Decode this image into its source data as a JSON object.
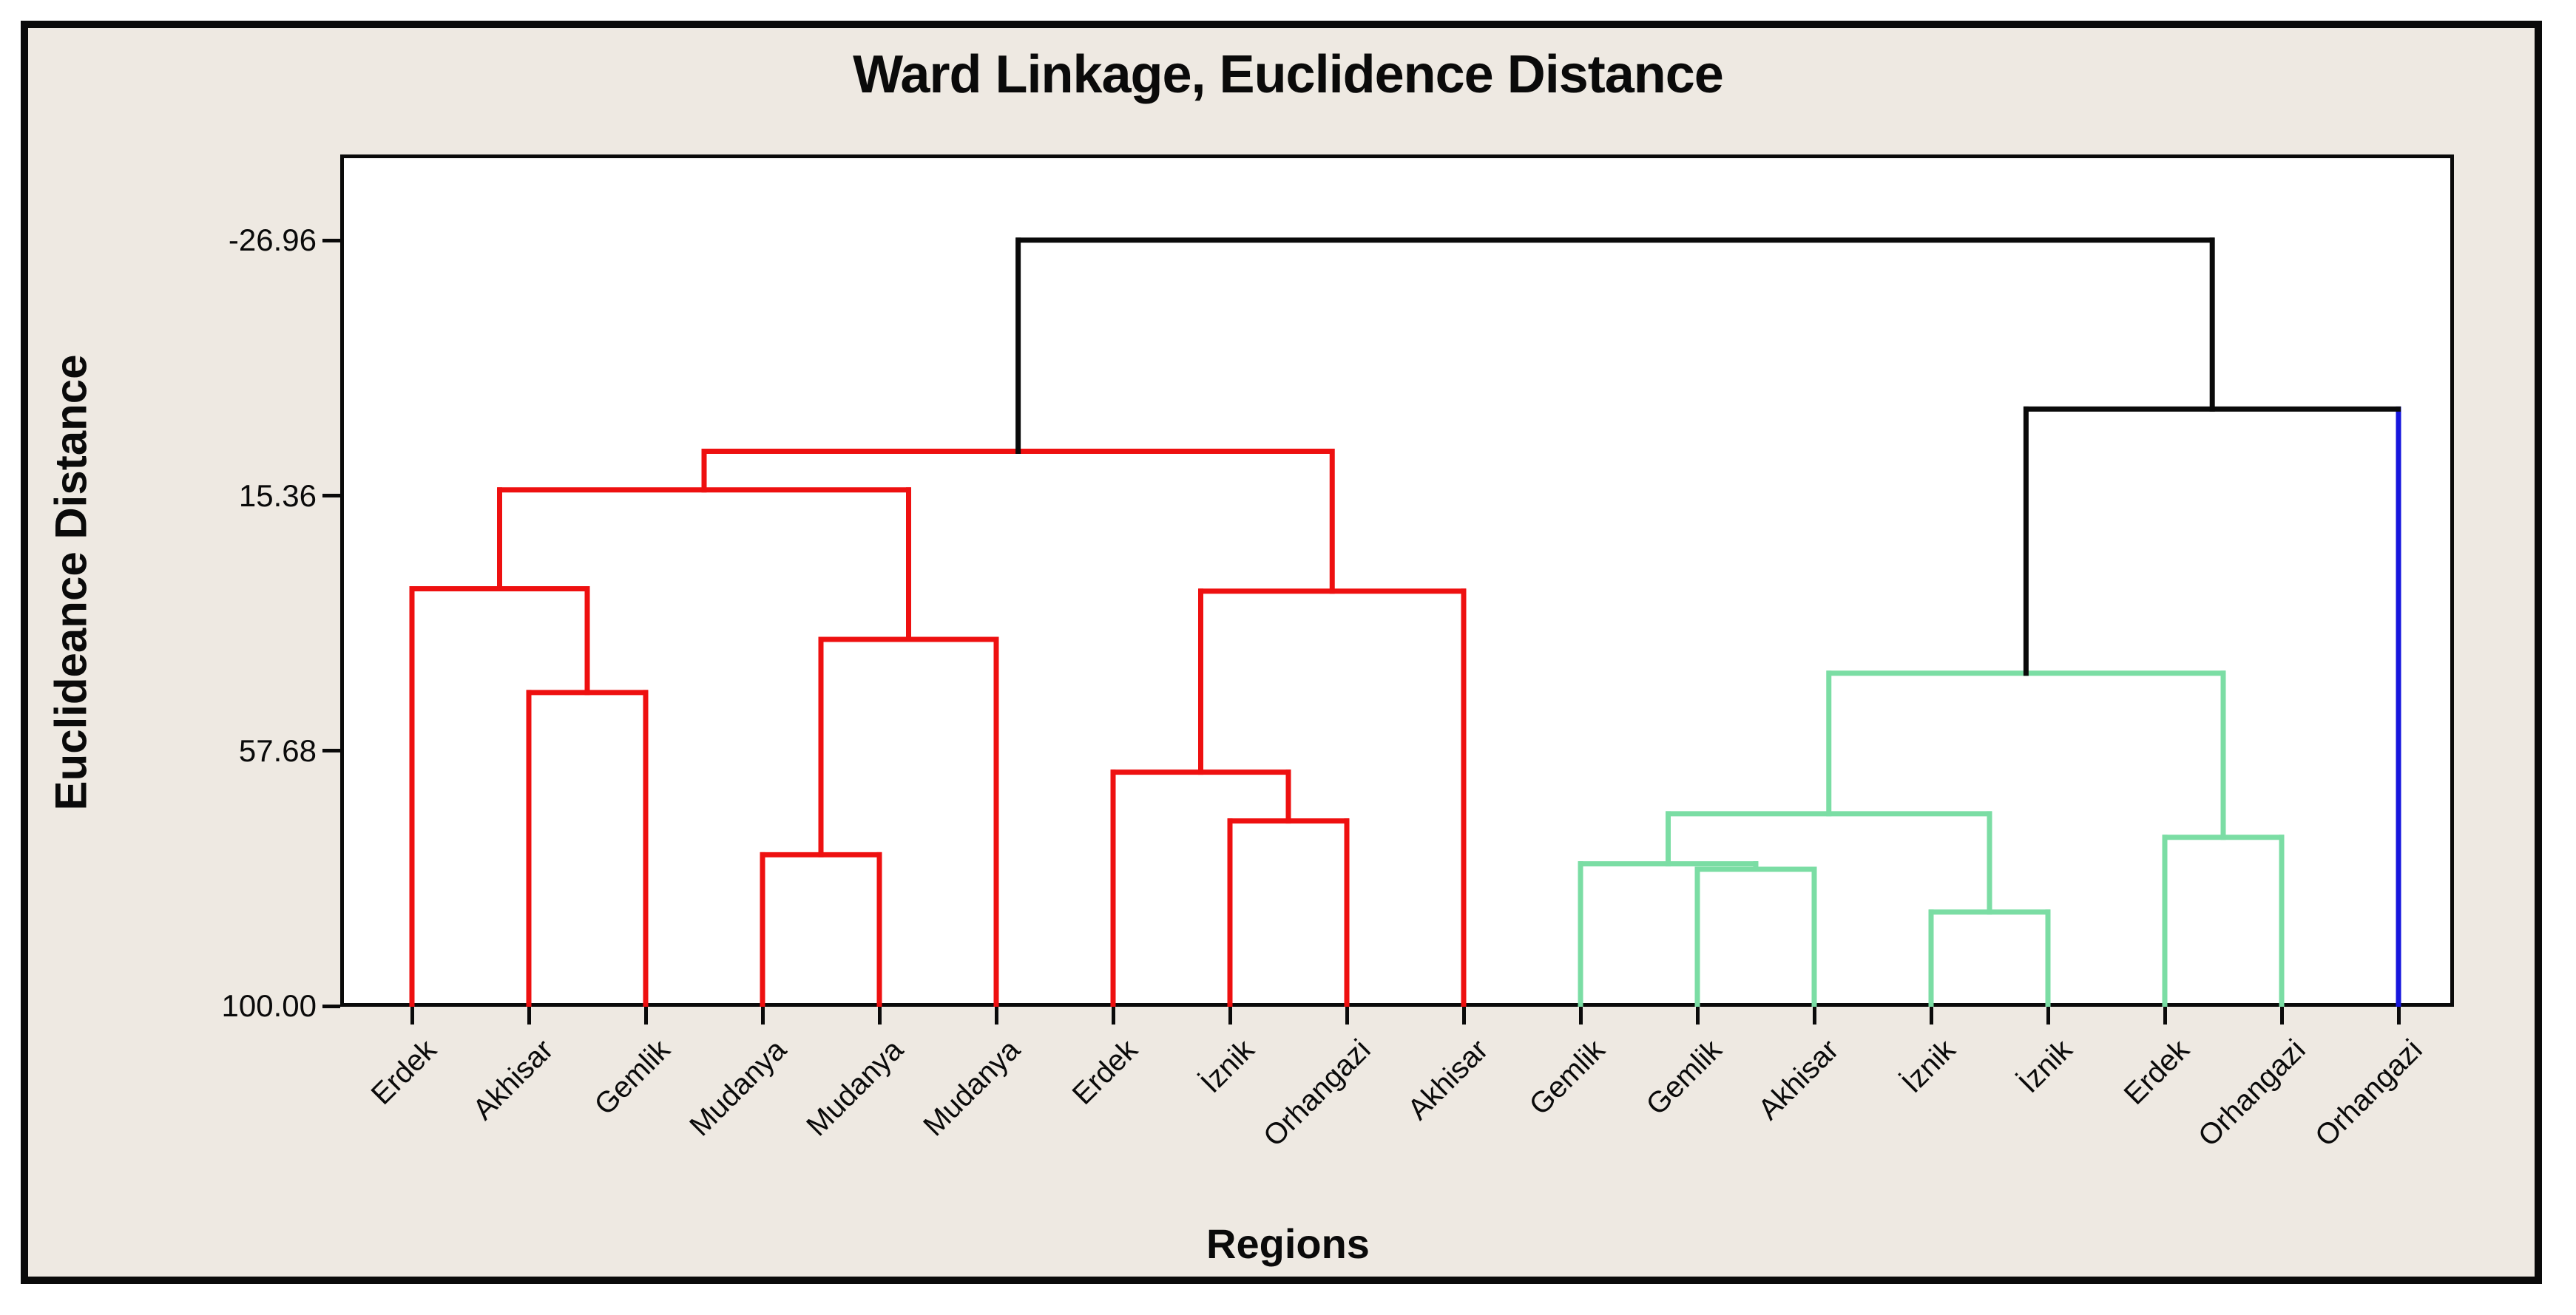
{
  "figure": {
    "title": "Ward Linkage, Euclidence Distance",
    "y_axis_label": "Euclideance Distance",
    "x_axis_label": "Regions"
  },
  "chart_data": {
    "type": "dendrogram",
    "title": "Ward Linkage, Euclidence Distance",
    "xlabel": "Regions",
    "ylabel": "Euclideance Distance",
    "orientation": "top-down",
    "y_axis_inverted": true,
    "grid": false,
    "legend": false,
    "y_ticks": [
      {
        "label": "-26.96",
        "value": -26.96
      },
      {
        "label": "15.36",
        "value": 15.36
      },
      {
        "label": "57.68",
        "value": 57.68
      },
      {
        "label": "100.00",
        "value": 100.0
      }
    ],
    "y_value_at_plot_top": -41.2,
    "y_value_at_plot_bottom": 100.1,
    "leaf_value": 100.0,
    "leaves": [
      {
        "label": "Erdek",
        "cluster": "red"
      },
      {
        "label": "Akhisar",
        "cluster": "red"
      },
      {
        "label": "Gemlik",
        "cluster": "red"
      },
      {
        "label": "Mudanya",
        "cluster": "red"
      },
      {
        "label": "Mudanya",
        "cluster": "red"
      },
      {
        "label": "Mudanya",
        "cluster": "red"
      },
      {
        "label": "Erdek",
        "cluster": "red"
      },
      {
        "label": "İznik",
        "cluster": "red"
      },
      {
        "label": "Orhangazi",
        "cluster": "red"
      },
      {
        "label": "Akhisar",
        "cluster": "red"
      },
      {
        "label": "Gemlik",
        "cluster": "green"
      },
      {
        "label": "Gemlik",
        "cluster": "green"
      },
      {
        "label": "Akhisar",
        "cluster": "green"
      },
      {
        "label": "İznik",
        "cluster": "green"
      },
      {
        "label": "İznik",
        "cluster": "green"
      },
      {
        "label": "Erdek",
        "cluster": "green"
      },
      {
        "label": "Orhangazi",
        "cluster": "green"
      },
      {
        "label": "Orhangazi",
        "cluster": "blue"
      }
    ],
    "merges": [
      {
        "id": "r1",
        "left": "L2",
        "right": "L3",
        "height": 48.0,
        "cluster": "red"
      },
      {
        "id": "r2",
        "left": "L1",
        "right": "r1",
        "height": 30.8,
        "cluster": "red"
      },
      {
        "id": "r3",
        "left": "L4",
        "right": "L5",
        "height": 74.9,
        "cluster": "red"
      },
      {
        "id": "r4",
        "left": "r3",
        "right": "L6",
        "height": 39.2,
        "cluster": "red"
      },
      {
        "id": "r5",
        "left": "r2",
        "right": "r4",
        "height": 14.4,
        "cluster": "red"
      },
      {
        "id": "r6",
        "left": "L8",
        "right": "L9",
        "height": 69.3,
        "cluster": "red"
      },
      {
        "id": "r7",
        "left": "L7",
        "right": "r6",
        "height": 61.2,
        "cluster": "red"
      },
      {
        "id": "r8",
        "left": "r7",
        "right": "L10",
        "height": 31.2,
        "cluster": "red"
      },
      {
        "id": "r9",
        "left": "r5",
        "right": "r8",
        "height": 8.0,
        "cluster": "red",
        "stem": "black"
      },
      {
        "id": "g1",
        "left": "L12",
        "right": "L13",
        "height": 77.3,
        "cluster": "green"
      },
      {
        "id": "g2",
        "left": "L11",
        "right": "g1",
        "height": 76.4,
        "cluster": "green"
      },
      {
        "id": "g3",
        "left": "L14",
        "right": "L15",
        "height": 84.4,
        "cluster": "green"
      },
      {
        "id": "g4",
        "left": "g2",
        "right": "g3",
        "height": 68.1,
        "cluster": "green"
      },
      {
        "id": "g5",
        "left": "L16",
        "right": "L17",
        "height": 72.0,
        "cluster": "green"
      },
      {
        "id": "g6",
        "left": "g4",
        "right": "g5",
        "height": 44.8,
        "cluster": "green",
        "stem": "black"
      },
      {
        "id": "b1",
        "left": "g6",
        "right": "L18",
        "height": 1.0,
        "cluster": "black"
      },
      {
        "id": "root",
        "left": "r9",
        "right": "b1",
        "height": -27.0,
        "cluster": "black"
      }
    ],
    "cluster_colors": {
      "red": "#ee1010",
      "green": "#7bdda4",
      "blue": "#1616dd",
      "black": "#0a0a0a"
    }
  }
}
